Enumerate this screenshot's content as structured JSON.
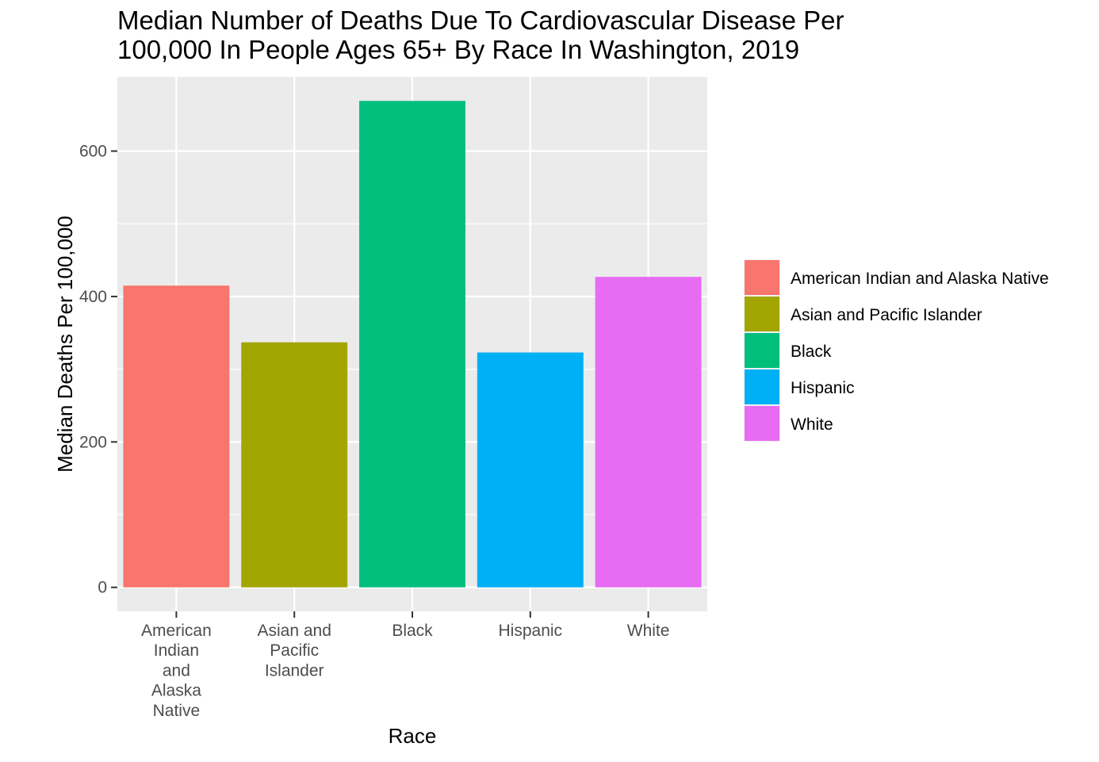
{
  "chart_data": {
    "type": "bar",
    "title_lines": [
      "Median Number of Deaths Due To Cardiovascular Disease Per",
      "100,000 In People Ages 65+ By Race In Washington, 2019"
    ],
    "xlabel": "Race",
    "ylabel": "Median Deaths Per 100,000",
    "categories": [
      "American Indian and Alaska Native",
      "Asian and Pacific Islander",
      "Black",
      "Hispanic",
      "White"
    ],
    "category_tick_lines": [
      [
        "American",
        "Indian",
        "and",
        "Alaska",
        "Native"
      ],
      [
        "Asian and",
        "Pacific",
        "Islander"
      ],
      [
        "Black"
      ],
      [
        "Hispanic"
      ],
      [
        "White"
      ]
    ],
    "values": [
      415,
      337,
      669,
      323,
      427
    ],
    "colors": [
      "#F8766D",
      "#A3A500",
      "#00BF7D",
      "#00B0F6",
      "#E76BF3"
    ],
    "ylim": [
      -33,
      702
    ],
    "yticks": [
      0,
      200,
      400,
      600
    ],
    "ytick_labels": [
      "0",
      "200",
      "400",
      "600"
    ],
    "grid": true,
    "panel_background": "#EBEBEB",
    "grid_color": "#FFFFFF",
    "legend": {
      "position": "right",
      "entries": [
        "American Indian and Alaska Native",
        "Asian and Pacific Islander",
        "Black",
        "Hispanic",
        "White"
      ]
    }
  }
}
